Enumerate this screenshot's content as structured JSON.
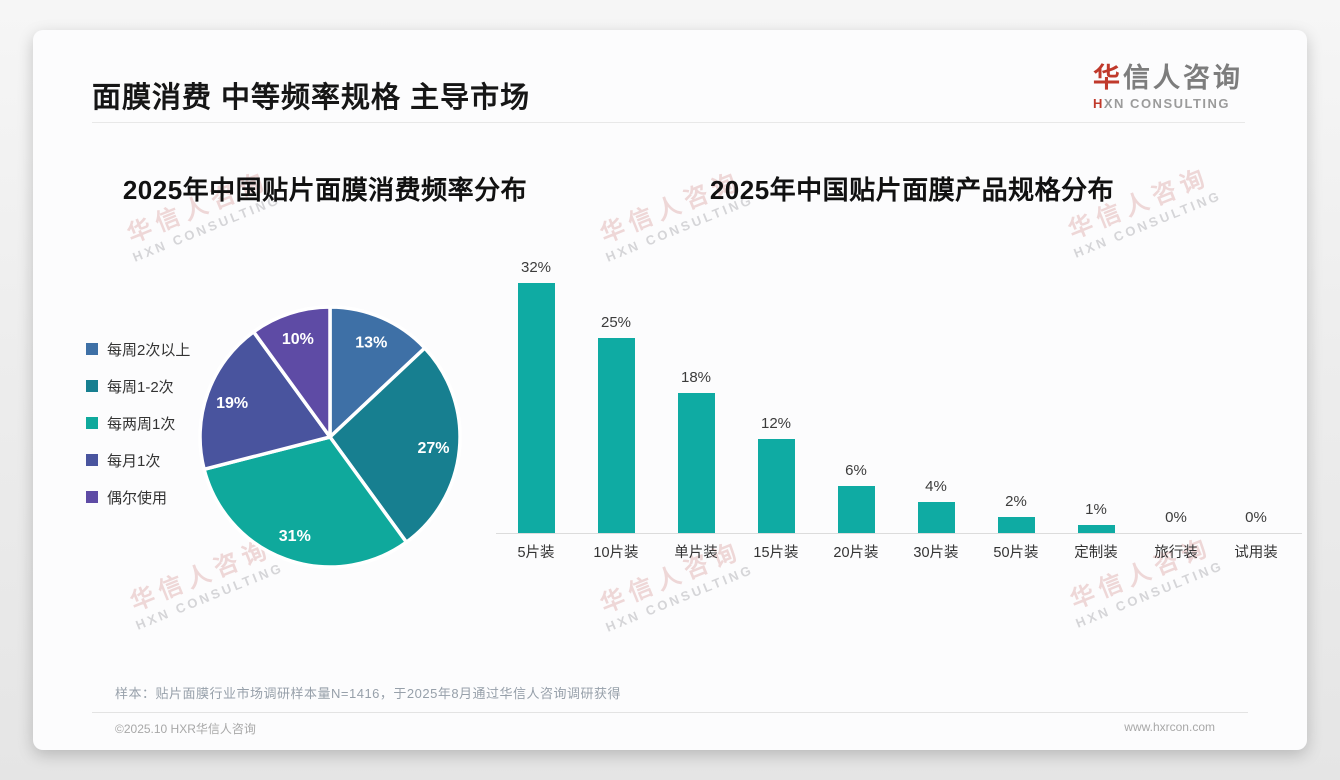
{
  "page": {
    "header": {
      "title": "面膜消费 中等频率规格 主导市场",
      "logo_cn_accent": "华",
      "logo_cn_rest": "信人咨询",
      "logo_en": "HXN CONSULTING"
    },
    "watermark": {
      "line1": "华信人咨询",
      "line2": "HXN CONSULTING"
    },
    "footnote": "样本：贴片面膜行业市场调研样本量N=1416，于2025年8月通过华信人咨询调研获得",
    "footer": {
      "left": "©2025.10 HXR华信人咨询",
      "right": "www.hxrcon.com"
    }
  },
  "colors": {
    "bar_teal": "#0FABA3",
    "logo_red": "#c0392b",
    "pie_palette": [
      "#3E70A6",
      "#177F90",
      "#0FA99C",
      "#49549E",
      "#5E4BA5"
    ]
  },
  "chart_data": [
    {
      "type": "pie",
      "title": "2025年中国贴片面膜消费频率分布",
      "labels": [
        "每周2次以上",
        "每周1-2次",
        "每两周1次",
        "每月1次",
        "偶尔使用"
      ],
      "values": [
        13,
        27,
        31,
        19,
        10
      ],
      "value_labels": [
        "13%",
        "27%",
        "31%",
        "19%",
        "10%"
      ],
      "colors": [
        "#3E70A6",
        "#177F90",
        "#0FA99C",
        "#49549E",
        "#5E4BA5"
      ],
      "start_angle_deg": 0,
      "direction": "clockwise",
      "legend_position": "left"
    },
    {
      "type": "bar",
      "title": "2025年中国贴片面膜产品规格分布",
      "categories": [
        "5片装",
        "10片装",
        "单片装",
        "15片装",
        "20片装",
        "30片装",
        "50片装",
        "定制装",
        "旅行装",
        "试用装"
      ],
      "values": [
        32,
        25,
        18,
        12,
        6,
        4,
        2,
        1,
        0,
        0
      ],
      "value_labels": [
        "32%",
        "25%",
        "18%",
        "12%",
        "6%",
        "4%",
        "2%",
        "1%",
        "0%",
        "0%"
      ],
      "bar_color": "#0FABA3",
      "ylim": [
        0,
        35
      ],
      "grid": false,
      "legend_position": "none"
    }
  ]
}
